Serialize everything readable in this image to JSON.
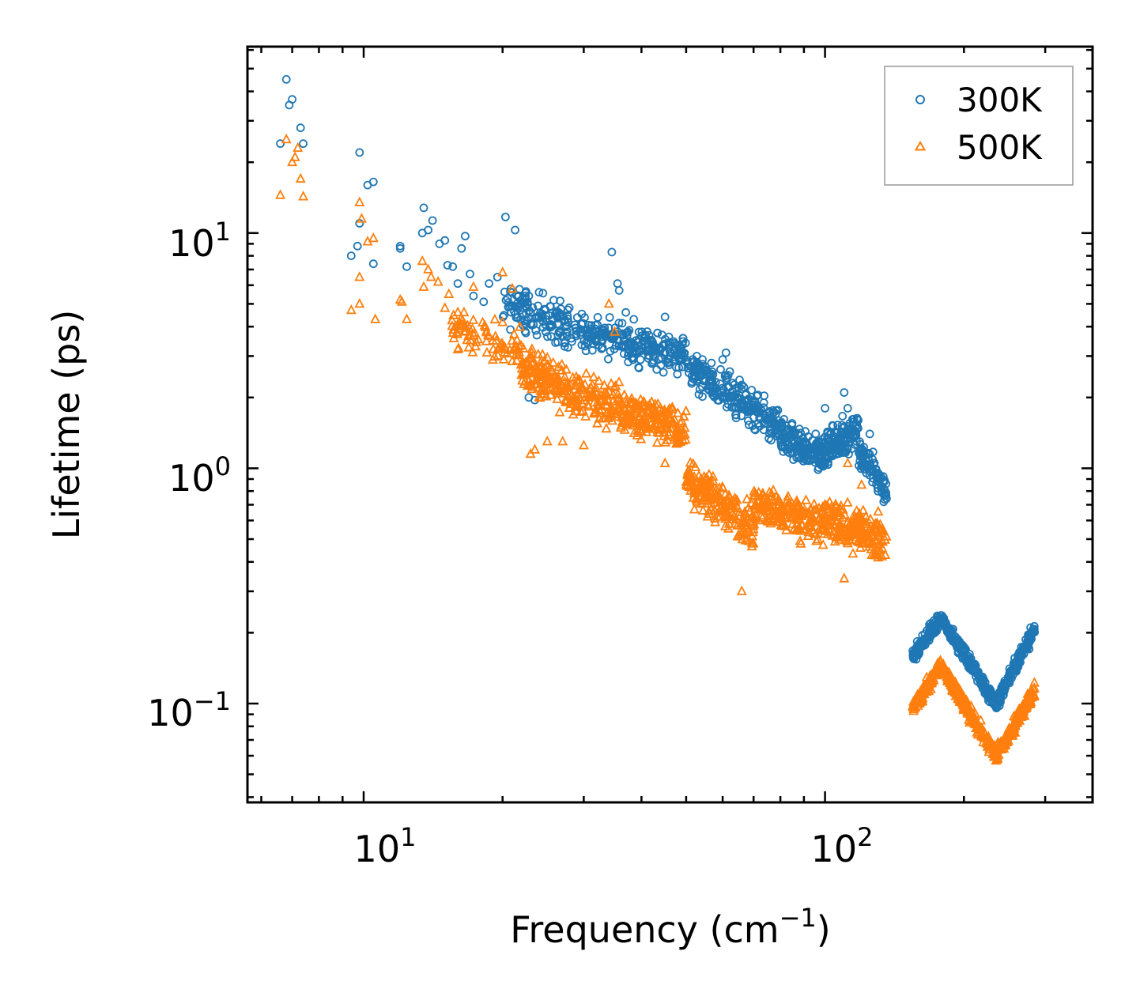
{
  "chart_data": {
    "type": "scatter",
    "title": "",
    "xlabel": "Frequency (cm",
    "xlabel_exponent": "−1",
    "xlabel_suffix": ")",
    "ylabel": "Lifetime (ps)",
    "xscale": "log",
    "yscale": "log",
    "xlim": [
      5.6,
      380
    ],
    "ylim": [
      0.038,
      62
    ],
    "x_ticks": [
      {
        "value": 10,
        "base": "10",
        "exponent": "1"
      },
      {
        "value": 100,
        "base": "10",
        "exponent": "2"
      }
    ],
    "y_ticks": [
      {
        "value": 0.1,
        "base": "10",
        "exponent": "−1"
      },
      {
        "value": 1,
        "base": "10",
        "exponent": "0"
      },
      {
        "value": 10,
        "base": "10",
        "exponent": "1"
      }
    ],
    "legend_position": "top-right",
    "series": [
      {
        "name": "300K",
        "marker": "circle",
        "color": "#1f77b4",
        "points": [
          [
            6.6,
            24
          ],
          [
            6.8,
            45
          ],
          [
            6.9,
            35
          ],
          [
            7.0,
            37
          ],
          [
            7.3,
            28
          ],
          [
            7.4,
            24
          ],
          [
            9.4,
            8
          ],
          [
            9.7,
            8.8
          ],
          [
            9.8,
            22
          ],
          [
            9.8,
            11
          ],
          [
            10.2,
            16
          ],
          [
            10.5,
            16.5
          ],
          [
            10.5,
            7.4
          ],
          [
            12.0,
            8.8
          ],
          [
            12.0,
            8.6
          ],
          [
            12.4,
            7.2
          ],
          [
            13.4,
            10
          ],
          [
            13.5,
            12.8
          ],
          [
            13.8,
            10.3
          ],
          [
            14.1,
            11.3
          ],
          [
            14.6,
            9
          ],
          [
            15.0,
            9.3
          ],
          [
            15.2,
            7.3
          ],
          [
            15.6,
            7.2
          ],
          [
            16.0,
            6.1
          ],
          [
            16.3,
            8.6
          ],
          [
            16.6,
            9.7
          ],
          [
            17.0,
            6.7
          ],
          [
            17.3,
            5.4
          ],
          [
            18.2,
            5.1
          ],
          [
            18.7,
            6.1
          ],
          [
            19.5,
            6.5
          ],
          [
            20.3,
            11.7
          ],
          [
            21.3,
            10.3
          ],
          [
            21.5,
            5
          ],
          [
            22.5,
            5.2
          ],
          [
            23.0,
            4.6
          ],
          [
            24.0,
            5.6
          ],
          [
            22.8,
            2.0
          ],
          [
            23.5,
            1.95
          ],
          [
            34.5,
            8.3
          ],
          [
            35.5,
            6.1
          ],
          [
            35.8,
            5.7
          ],
          [
            37.0,
            4.6
          ],
          [
            38.5,
            4.3
          ],
          [
            45.0,
            4.4
          ],
          [
            52.0,
            2.6
          ],
          [
            55.0,
            2.6
          ],
          [
            60.0,
            2.9
          ],
          [
            61.0,
            3.1
          ],
          [
            65.0,
            2.2
          ],
          [
            100.0,
            1.8
          ],
          [
            110.0,
            2.1
          ],
          [
            112.0,
            1.8
          ],
          [
            118.0,
            1.6
          ],
          [
            125.0,
            1.4
          ],
          [
            130.0,
            0.9
          ],
          [
            134.0,
            0.72
          ]
        ],
        "bands": [
          {
            "f0": 20,
            "f1": 30,
            "y0": 5.0,
            "y1": 3.8,
            "spread": 1.35,
            "n": 150
          },
          {
            "f0": 30,
            "f1": 50,
            "y0": 3.8,
            "y1": 3.0,
            "spread": 1.3,
            "n": 230
          },
          {
            "f0": 50,
            "f1": 80,
            "y0": 2.7,
            "y1": 1.5,
            "spread": 1.3,
            "n": 230
          },
          {
            "f0": 80,
            "f1": 100,
            "y0": 1.35,
            "y1": 1.1,
            "spread": 1.3,
            "n": 150
          },
          {
            "f0": 100,
            "f1": 118,
            "y0": 1.2,
            "y1": 1.45,
            "spread": 1.3,
            "n": 130
          },
          {
            "f0": 118,
            "f1": 136,
            "y0": 1.2,
            "y1": 0.8,
            "spread": 1.25,
            "n": 90
          },
          {
            "f0": 155,
            "f1": 178,
            "y0": 0.16,
            "y1": 0.23,
            "spread": 1.12,
            "n": 110
          },
          {
            "f0": 178,
            "f1": 235,
            "y0": 0.23,
            "y1": 0.1,
            "spread": 1.12,
            "n": 200
          },
          {
            "f0": 235,
            "f1": 285,
            "y0": 0.1,
            "y1": 0.21,
            "spread": 1.12,
            "n": 160
          }
        ]
      },
      {
        "name": "500K",
        "marker": "triangle",
        "color": "#ff7f0e",
        "points": [
          [
            6.6,
            14.5
          ],
          [
            6.8,
            25
          ],
          [
            7.0,
            20
          ],
          [
            7.1,
            21
          ],
          [
            7.2,
            23
          ],
          [
            7.3,
            17
          ],
          [
            7.4,
            14.3
          ],
          [
            9.4,
            4.7
          ],
          [
            9.8,
            6.5
          ],
          [
            9.8,
            5
          ],
          [
            9.8,
            13.5
          ],
          [
            9.9,
            11.5
          ],
          [
            10.2,
            9.2
          ],
          [
            10.5,
            9.5
          ],
          [
            10.6,
            4.3
          ],
          [
            12.0,
            5.2
          ],
          [
            12.1,
            5.1
          ],
          [
            12.4,
            4.3
          ],
          [
            13.4,
            7.6
          ],
          [
            13.5,
            5.9
          ],
          [
            13.8,
            7
          ],
          [
            14.0,
            6.5
          ],
          [
            14.5,
            6.2
          ],
          [
            15.0,
            4.8
          ],
          [
            15.3,
            5.5
          ],
          [
            16.0,
            3.2
          ],
          [
            16.5,
            4.6
          ],
          [
            17.3,
            5.9
          ],
          [
            18.5,
            3.1
          ],
          [
            20.0,
            6.8
          ],
          [
            21.0,
            5.8
          ],
          [
            21.5,
            3.5
          ],
          [
            23.0,
            1.15
          ],
          [
            23.5,
            1.2
          ],
          [
            25.0,
            1.3
          ],
          [
            27.0,
            1.3
          ],
          [
            30.0,
            1.25
          ],
          [
            34.0,
            5
          ],
          [
            35.0,
            3.8
          ],
          [
            45.0,
            1.05
          ],
          [
            55.0,
            0.9
          ],
          [
            62.0,
            0.75
          ],
          [
            66.0,
            0.3
          ],
          [
            70.0,
            0.55
          ],
          [
            100.0,
            0.7
          ],
          [
            110.0,
            0.34
          ],
          [
            112.0,
            1.05
          ],
          [
            120.0,
            0.85
          ],
          [
            130.0,
            0.45
          ]
        ],
        "bands": [
          {
            "f0": 15.5,
            "f1": 22,
            "y0": 4.0,
            "y1": 3.2,
            "spread": 1.3,
            "n": 80
          },
          {
            "f0": 22,
            "f1": 30,
            "y0": 2.7,
            "y1": 2.0,
            "spread": 1.35,
            "n": 180
          },
          {
            "f0": 30,
            "f1": 50,
            "y0": 2.0,
            "y1": 1.45,
            "spread": 1.35,
            "n": 260
          },
          {
            "f0": 50,
            "f1": 70,
            "y0": 0.9,
            "y1": 0.55,
            "spread": 1.35,
            "n": 200
          },
          {
            "f0": 70,
            "f1": 100,
            "y0": 0.7,
            "y1": 0.58,
            "spread": 1.35,
            "n": 200
          },
          {
            "f0": 100,
            "f1": 136,
            "y0": 0.6,
            "y1": 0.5,
            "spread": 1.35,
            "n": 200
          },
          {
            "f0": 155,
            "f1": 178,
            "y0": 0.095,
            "y1": 0.145,
            "spread": 1.12,
            "n": 110
          },
          {
            "f0": 178,
            "f1": 235,
            "y0": 0.145,
            "y1": 0.06,
            "spread": 1.12,
            "n": 200
          },
          {
            "f0": 235,
            "f1": 285,
            "y0": 0.06,
            "y1": 0.115,
            "spread": 1.12,
            "n": 160
          }
        ]
      }
    ]
  }
}
